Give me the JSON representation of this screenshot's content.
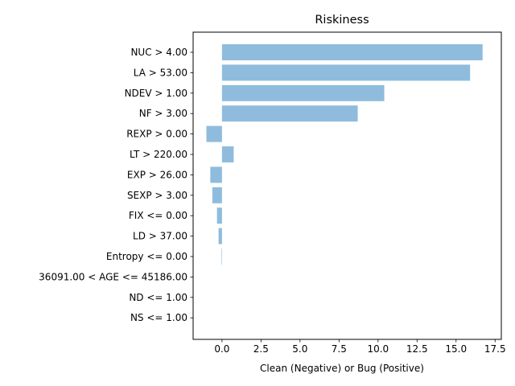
{
  "chart_data": {
    "type": "bar",
    "orientation": "horizontal",
    "title": "Riskiness",
    "xlabel": "Clean (Negative) or Bug (Positive)",
    "ylabel": "",
    "categories": [
      "NUC > 4.00",
      "LA > 53.00",
      "NDEV > 1.00",
      "NF > 3.00",
      "REXP > 0.00",
      "LT > 220.00",
      "EXP > 26.00",
      "SEXP > 3.00",
      "FIX <= 0.00",
      "LD > 37.00",
      "Entropy <= 0.00",
      "36091.00 < AGE <= 45186.00",
      "ND <= 1.00",
      "NS <= 1.00"
    ],
    "values": [
      16.7,
      15.9,
      10.4,
      8.7,
      -1.0,
      0.75,
      -0.75,
      -0.62,
      -0.32,
      -0.22,
      -0.03,
      0.0,
      0.0,
      0.0
    ],
    "xlim": [
      -1.85,
      17.9
    ],
    "xticks": [
      0.0,
      2.5,
      5.0,
      7.5,
      10.0,
      12.5,
      15.0,
      17.5
    ],
    "xtick_labels": [
      "0.0",
      "2.5",
      "5.0",
      "7.5",
      "10.0",
      "12.5",
      "15.0",
      "17.5"
    ],
    "bar_color": "#8fbcdd",
    "grid": false,
    "legend": "none"
  }
}
